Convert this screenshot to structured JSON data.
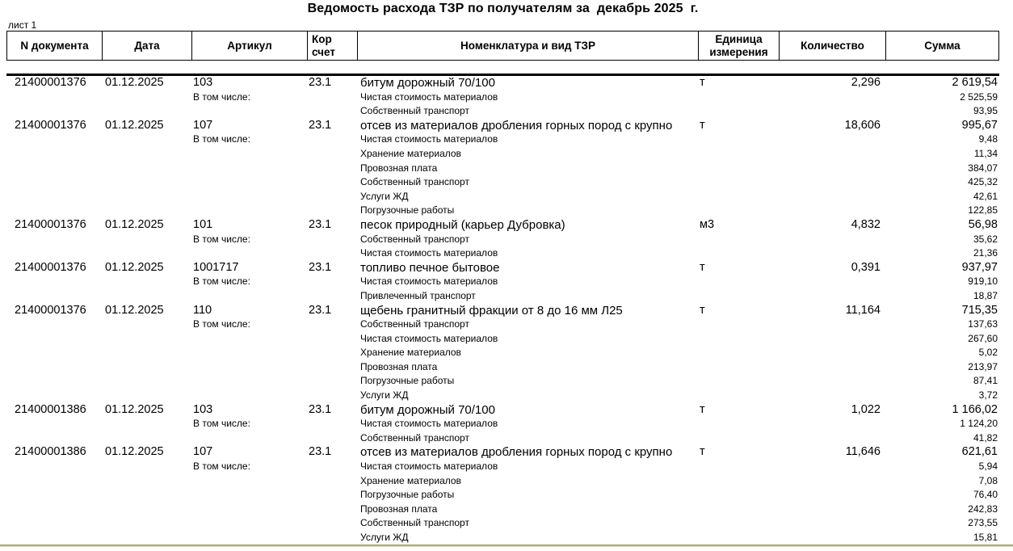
{
  "title": "Ведомость расхода ТЗР по получателям за  декабрь 2025  г.",
  "sheet_label": "лист 1",
  "colors": {
    "text": "#000000",
    "border": "#000000",
    "bottom_line_dark": "#97976a",
    "bottom_line_light": "#d8d8b8"
  },
  "table": {
    "columns": [
      "N документа",
      "Дата",
      "Артикул",
      "Кор счет",
      "Номенклатура и вид ТЗР",
      "Единица измерения",
      "Количество",
      "Сумма"
    ],
    "including_label": "В том числе:",
    "rows": [
      {
        "doc": "21400001376",
        "date": "01.12.2025",
        "article": "103",
        "account": "23.1",
        "name": "битум дорожный 70/100",
        "unit": "т",
        "qty": "2,296",
        "sum": "2 619,54",
        "details": [
          {
            "name": "Чистая стоимость материалов",
            "sum": "2 525,59"
          },
          {
            "name": "Собственный транспорт",
            "sum": "93,95"
          }
        ]
      },
      {
        "doc": "21400001376",
        "date": "01.12.2025",
        "article": "107",
        "account": "23.1",
        "name": "отсев из материалов дробления горных пород с крупно",
        "unit": "т",
        "qty": "18,606",
        "sum": "995,67",
        "details": [
          {
            "name": "Чистая стоимость материалов",
            "sum": "9,48"
          },
          {
            "name": "Хранение материалов",
            "sum": "11,34"
          },
          {
            "name": "Провозная плата",
            "sum": "384,07"
          },
          {
            "name": "Собственный транспорт",
            "sum": "425,32"
          },
          {
            "name": "Услуги ЖД",
            "sum": "42,61"
          },
          {
            "name": "Погрузочные работы",
            "sum": "122,85"
          }
        ]
      },
      {
        "doc": "21400001376",
        "date": "01.12.2025",
        "article": "101",
        "account": "23.1",
        "name": "песок природный (карьер Дубровка)",
        "unit": "м3",
        "qty": "4,832",
        "sum": "56,98",
        "details": [
          {
            "name": "Собственный транспорт",
            "sum": "35,62"
          },
          {
            "name": "Чистая стоимость материалов",
            "sum": "21,36"
          }
        ]
      },
      {
        "doc": "21400001376",
        "date": "01.12.2025",
        "article": "1001717",
        "account": "23.1",
        "name": "топливо печное бытовое",
        "unit": "т",
        "qty": "0,391",
        "sum": "937,97",
        "details": [
          {
            "name": "Чистая стоимость материалов",
            "sum": "919,10"
          },
          {
            "name": "Привлеченный транспорт",
            "sum": "18,87"
          }
        ]
      },
      {
        "doc": "21400001376",
        "date": "01.12.2025",
        "article": "110",
        "account": "23.1",
        "name": "щебень гранитный фракции от 8 до 16 мм Л25",
        "unit": "т",
        "qty": "11,164",
        "sum": "715,35",
        "details": [
          {
            "name": "Собственный транспорт",
            "sum": "137,63"
          },
          {
            "name": "Чистая стоимость материалов",
            "sum": "267,60"
          },
          {
            "name": "Хранение материалов",
            "sum": "5,02"
          },
          {
            "name": "Провозная плата",
            "sum": "213,97"
          },
          {
            "name": "Погрузочные работы",
            "sum": "87,41"
          },
          {
            "name": "Услуги ЖД",
            "sum": "3,72"
          }
        ]
      },
      {
        "doc": "21400001386",
        "date": "01.12.2025",
        "article": "103",
        "account": "23.1",
        "name": "битум дорожный 70/100",
        "unit": "т",
        "qty": "1,022",
        "sum": "1 166,02",
        "details": [
          {
            "name": "Чистая стоимость материалов",
            "sum": "1 124,20"
          },
          {
            "name": "Собственный транспорт",
            "sum": "41,82"
          }
        ]
      },
      {
        "doc": "21400001386",
        "date": "01.12.2025",
        "article": "107",
        "account": "23.1",
        "name": "отсев из материалов дробления горных пород с крупно",
        "unit": "т",
        "qty": "11,646",
        "sum": "621,61",
        "details": [
          {
            "name": "Чистая стоимость материалов",
            "sum": "5,94"
          },
          {
            "name": "Хранение материалов",
            "sum": "7,08"
          },
          {
            "name": "Погрузочные работы",
            "sum": "76,40"
          },
          {
            "name": "Провозная плата",
            "sum": "242,83"
          },
          {
            "name": "Собственный транспорт",
            "sum": "273,55"
          },
          {
            "name": "Услуги ЖД",
            "sum": "15,81"
          }
        ]
      }
    ]
  }
}
